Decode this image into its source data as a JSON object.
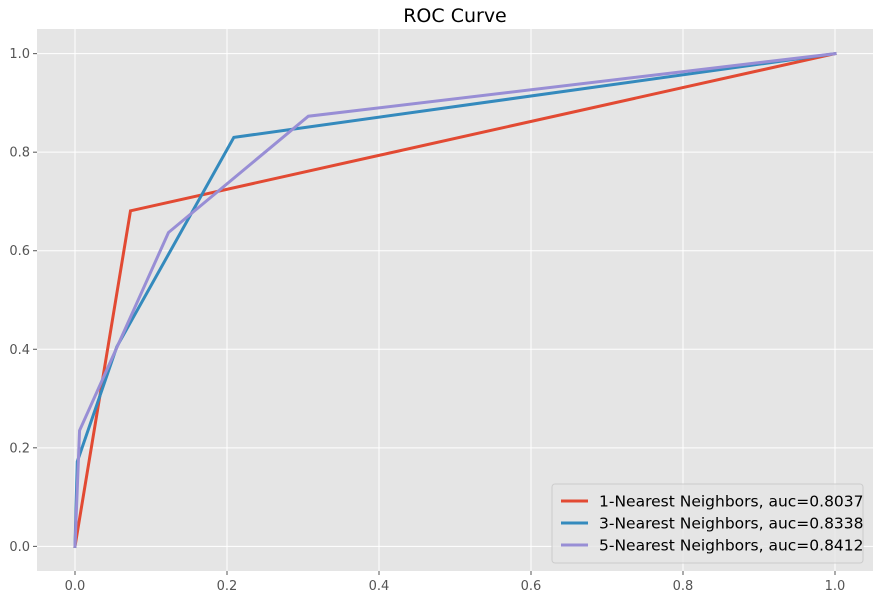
{
  "chart_data": {
    "type": "line",
    "title": "ROC Curve",
    "xlabel": "",
    "ylabel": "",
    "xlim": [
      -0.05,
      1.05
    ],
    "ylim": [
      -0.05,
      1.05
    ],
    "xticks": [
      0.0,
      0.2,
      0.4,
      0.6,
      0.8,
      1.0
    ],
    "yticks": [
      0.0,
      0.2,
      0.4,
      0.6,
      0.8,
      1.0
    ],
    "xtick_labels": [
      "0.0",
      "0.2",
      "0.4",
      "0.6",
      "0.8",
      "1.0"
    ],
    "ytick_labels": [
      "0.0",
      "0.2",
      "0.4",
      "0.6",
      "0.8",
      "1.0"
    ],
    "grid": true,
    "legend_position": "bottom-right",
    "series": [
      {
        "name": "1-Nearest Neighbors, auc=0.8037",
        "color": "#E24A33",
        "points": [
          [
            0.0,
            0.0
          ],
          [
            0.073,
            0.681
          ],
          [
            1.0,
            1.0
          ]
        ]
      },
      {
        "name": "3-Nearest Neighbors, auc=0.8338",
        "color": "#348ABD",
        "points": [
          [
            0.0,
            0.0
          ],
          [
            0.003,
            0.172
          ],
          [
            0.055,
            0.405
          ],
          [
            0.209,
            0.83
          ],
          [
            1.0,
            1.0
          ]
        ]
      },
      {
        "name": "5-Nearest Neighbors, auc=0.8412",
        "color": "#988ED5",
        "points": [
          [
            0.0,
            0.0
          ],
          [
            0.006,
            0.235
          ],
          [
            0.123,
            0.637
          ],
          [
            0.307,
            0.873
          ],
          [
            1.0,
            1.0
          ]
        ]
      }
    ]
  }
}
